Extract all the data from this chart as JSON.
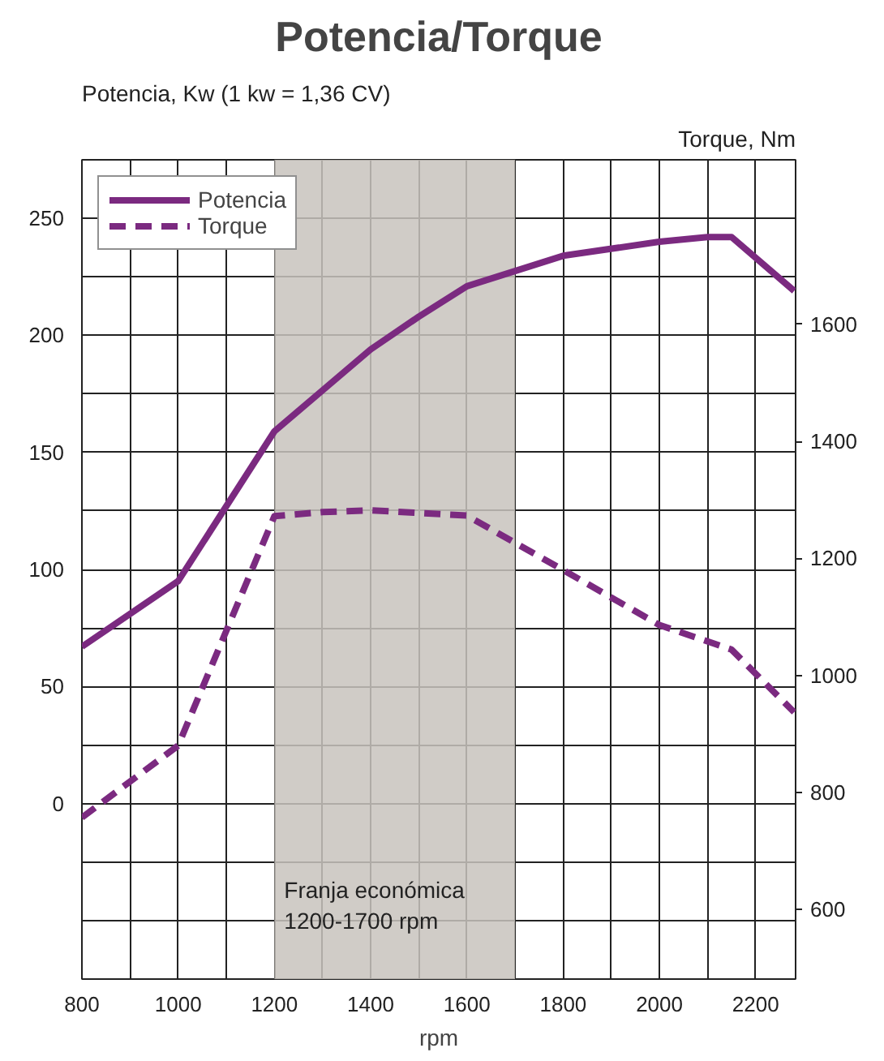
{
  "chart_data": {
    "type": "line",
    "title": "Potencia/Torque",
    "xlabel": "rpm",
    "ylabel": "Potencia, Kw (1 kw = 1,36 CV)",
    "y2label": "Torque, Nm",
    "series": [
      {
        "name": "Potencia",
        "color": "#7b2a80",
        "line_style": "solid",
        "x": [
          800,
          1000,
          1200,
          1400,
          1500,
          1600,
          1800,
          2000,
          2100,
          2150,
          2280
        ],
        "values": [
          67,
          95,
          159,
          194,
          208,
          221,
          234,
          240,
          242,
          242,
          219
        ]
      },
      {
        "name": "Torque",
        "color": "#7b2a80",
        "line_style": "dashed",
        "axis": "y2",
        "x": [
          800,
          1000,
          1200,
          1300,
          1400,
          1600,
          1800,
          2000,
          2150,
          2280
        ],
        "values": [
          757,
          880,
          1272,
          1279,
          1282,
          1273,
          1180,
          1086,
          1044,
          937
        ]
      }
    ],
    "xlim": [
      800,
      2283
    ],
    "xticks": [
      800,
      1000,
      1200,
      1400,
      1600,
      1800,
      2000,
      2200
    ],
    "ylim": [
      -75,
      275
    ],
    "yticks": [
      0,
      50,
      100,
      150,
      200,
      250
    ],
    "y2lim": [
      481,
      1881
    ],
    "y2ticks": [
      600,
      800,
      1000,
      1200,
      1400,
      1600
    ],
    "bands": [
      {
        "axis": "x",
        "from": 1200,
        "to": 1700,
        "label": "Franja económica\n1200-1700 rpm",
        "color": "#c8c3bd"
      }
    ],
    "grid": true,
    "legend": "top left",
    "marker": "none"
  }
}
